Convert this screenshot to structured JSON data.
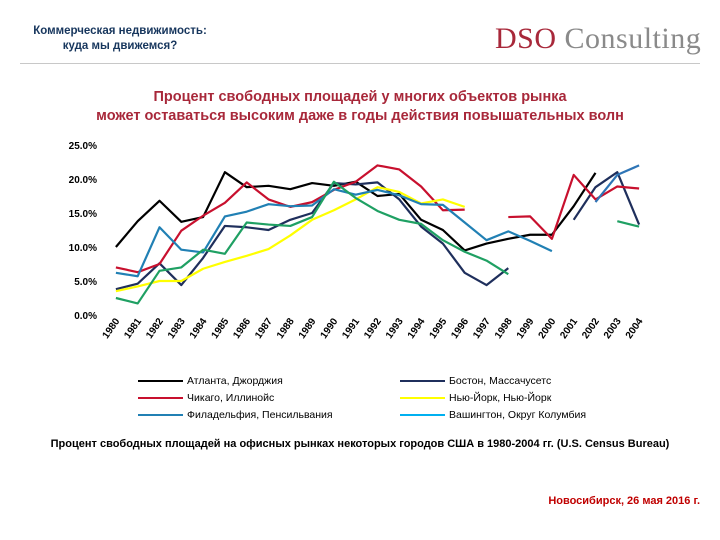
{
  "header": {
    "subtitle_line1": "Коммерческая недвижимость:",
    "subtitle_line2": "куда мы движемся?",
    "brand_part1": "DSO",
    "brand_part2": " Consulting",
    "brand_color": "#a8283a"
  },
  "slide": {
    "title_line1": "Процент свободных площадей у многих объектов рынка",
    "title_line2": "может оставаться высоким даже в годы действия повышательных волн",
    "caption": "Процент свободных площадей на офисных рынках некоторых городов США в 1980-2004 гг. (U.S. Census Bureau)",
    "footer": "Новосибирск, 26 мая 2016 г."
  },
  "chart_data": {
    "type": "line",
    "title": "",
    "xlabel": "",
    "ylabel": "",
    "categories": [
      "1980",
      "1981",
      "1982",
      "1983",
      "1984",
      "1985",
      "1986",
      "1987",
      "1988",
      "1989",
      "1990",
      "1991",
      "1992",
      "1993",
      "1994",
      "1995",
      "1996",
      "1997",
      "1998",
      "1999",
      "2000",
      "2001",
      "2002",
      "2003",
      "2004"
    ],
    "y_ticks": [
      "0.0%",
      "5.0%",
      "10.0%",
      "15.0%",
      "20.0%",
      "25.0%"
    ],
    "ylim": [
      0,
      25
    ],
    "grid": false,
    "legend_placement": "bottom",
    "series": [
      {
        "name": "Атланта, Джорджия",
        "color": "#000000",
        "values": [
          10.0,
          13.8,
          16.8,
          13.7,
          14.4,
          21.0,
          18.8,
          19.0,
          18.5,
          19.4,
          19.0,
          19.6,
          17.5,
          17.8,
          14.0,
          12.5,
          9.5,
          10.5,
          11.2,
          11.8,
          11.8,
          16.0,
          20.9,
          null,
          null
        ]
      },
      {
        "name": "Бостон, Массачусетс",
        "color": "#1f2f5c",
        "values": [
          3.8,
          4.6,
          7.6,
          4.4,
          8.4,
          13.1,
          12.9,
          12.5,
          14.0,
          15.0,
          19.4,
          19.2,
          19.5,
          17.0,
          13.0,
          10.5,
          6.2,
          4.4,
          6.9,
          null,
          null,
          14.0,
          18.8,
          21.0,
          13.3
        ]
      },
      {
        "name": "Чикаго, Иллинойс",
        "color": "#c8102e",
        "values": [
          7.0,
          6.3,
          7.5,
          12.4,
          14.6,
          16.5,
          19.5,
          17.0,
          15.9,
          16.6,
          18.4,
          19.6,
          22.0,
          21.4,
          18.9,
          15.4,
          15.5,
          null,
          14.4,
          14.5,
          11.2,
          20.6,
          17.0,
          18.9,
          18.6
        ]
      },
      {
        "name": "Нью-Йорк, Нью-Йорк",
        "color": "#ffff00",
        "values": [
          3.5,
          4.2,
          5.0,
          5.0,
          6.8,
          7.8,
          8.7,
          9.7,
          11.7,
          14.0,
          15.4,
          17.0,
          18.8,
          18.1,
          16.4,
          17.0,
          15.9,
          null,
          null,
          null,
          null,
          null,
          null,
          null,
          null
        ]
      },
      {
        "name": "Филадельфия, Пенсильвания",
        "color": "#2180b4",
        "values": [
          6.2,
          5.7,
          12.9,
          9.6,
          9.2,
          14.5,
          15.2,
          16.3,
          16.0,
          16.1,
          18.5,
          17.7,
          18.4,
          17.6,
          16.3,
          16.2,
          13.6,
          11.0,
          12.3,
          10.9,
          9.4,
          null,
          null,
          null,
          null
        ]
      },
      {
        "name": "Вашингтон, Округ Колумбия",
        "color": "#00b0f0",
        "values": [
          null,
          null,
          null,
          null,
          null,
          null,
          null,
          null,
          null,
          null,
          null,
          null,
          null,
          null,
          null,
          null,
          null,
          null,
          null,
          null,
          null,
          null,
          null,
          null,
          null
        ]
      },
      {
        "name": "",
        "color": "#1fa063",
        "values": [
          2.5,
          1.7,
          6.5,
          7.0,
          9.6,
          9.0,
          13.6,
          13.3,
          13.1,
          14.4,
          19.6,
          17.2,
          15.3,
          14.0,
          13.4,
          11.0,
          9.3,
          8.0,
          6.0,
          null,
          null,
          null,
          null,
          13.8,
          13.0
        ]
      },
      {
        "name": "",
        "color": "#2e75b6",
        "values": [
          null,
          null,
          null,
          null,
          null,
          null,
          null,
          null,
          null,
          null,
          null,
          null,
          null,
          null,
          null,
          null,
          null,
          null,
          null,
          null,
          null,
          null,
          16.6,
          20.6,
          22.0
        ]
      }
    ],
    "legend_left": [
      0,
      2,
      4
    ],
    "legend_right": [
      1,
      3,
      5
    ]
  }
}
